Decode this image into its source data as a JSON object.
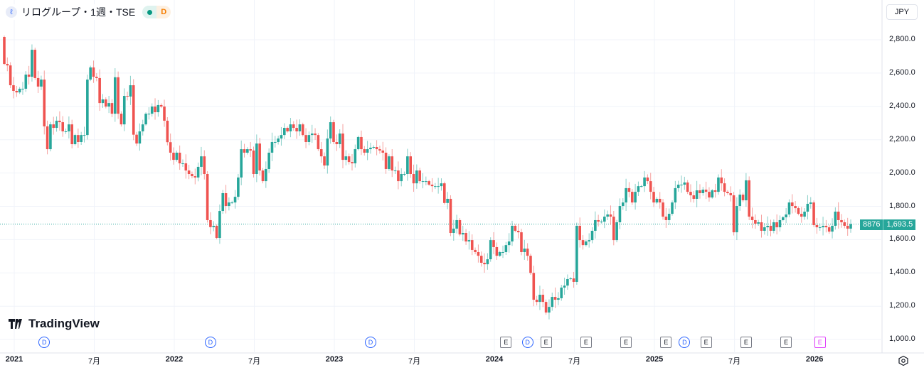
{
  "header": {
    "title": "リログループ・1週・TSE",
    "market_status_icon": "green-dot",
    "dividend_badge": "D",
    "symbol_icon": "relo-logo"
  },
  "currency_button": "JPY",
  "price_label": {
    "volume": "8876",
    "price": "1,693.5"
  },
  "logo_text": "TradingView",
  "colors": {
    "up": "#26a69a",
    "down": "#ef5350",
    "grid": "#f0f3fa",
    "price_line": "#26a69a"
  },
  "chart_data": {
    "type": "candlestick",
    "title": "リログループ・1週・TSE",
    "ylim": [
      1000,
      2800
    ],
    "y_ticks": [
      "2,800.0",
      "2,600.0",
      "2,400.0",
      "2,200.0",
      "2,000.0",
      "1,800.0",
      "1,600.0",
      "1,400.0",
      "1,200.0",
      "1,000.0"
    ],
    "y_tick_values": [
      2800,
      2600,
      2400,
      2200,
      2000,
      1800,
      1600,
      1400,
      1200,
      1000
    ],
    "x_ticks": [
      {
        "label": "2021",
        "year": true,
        "week": 0
      },
      {
        "label": "7月",
        "year": false,
        "week": 26
      },
      {
        "label": "2022",
        "year": true,
        "week": 52
      },
      {
        "label": "7月",
        "year": false,
        "week": 78
      },
      {
        "label": "2023",
        "year": true,
        "week": 104
      },
      {
        "label": "7月",
        "year": false,
        "week": 130
      },
      {
        "label": "2024",
        "year": true,
        "week": 156
      },
      {
        "label": "7月",
        "year": false,
        "week": 182
      },
      {
        "label": "2025",
        "year": true,
        "week": 208
      },
      {
        "label": "7月",
        "year": false,
        "week": 234
      },
      {
        "label": "2026",
        "year": true,
        "week": 260
      }
    ],
    "first_open": 2817,
    "closes": [
      2655,
      2646,
      2527,
      2493,
      2484,
      2506,
      2506,
      2591,
      2578,
      2740,
      2570,
      2519,
      2561,
      2280,
      2143,
      2292,
      2271,
      2314,
      2305,
      2250,
      2250,
      2292,
      2173,
      2228,
      2186,
      2228,
      2228,
      2561,
      2634,
      2578,
      2570,
      2420,
      2442,
      2399,
      2420,
      2356,
      2575,
      2356,
      2292,
      2463,
      2459,
      2527,
      2230,
      2177,
      2250,
      2292,
      2356,
      2356,
      2399,
      2365,
      2408,
      2399,
      2314,
      2185,
      2122,
      2079,
      2122,
      2058,
      2058,
      2015,
      1994,
      1981,
      1973,
      2037,
      2100,
      1994,
      1717,
      1675,
      1683,
      1610,
      1772,
      1879,
      1802,
      1823,
      1823,
      1857,
      1973,
      2143,
      2122,
      2143,
      2135,
      1994,
      2177,
      2015,
      1951,
      2024,
      2122,
      2186,
      2186,
      2207,
      2228,
      2271,
      2250,
      2292,
      2271,
      2250,
      2292,
      2228,
      2186,
      2228,
      2237,
      2228,
      2143,
      2100,
      2045,
      2207,
      2305,
      2186,
      2173,
      2237,
      2079,
      2100,
      2066,
      2058,
      2143,
      2216,
      2143,
      2122,
      2143,
      2152,
      2156,
      2143,
      2135,
      2122,
      2024,
      2100,
      2015,
      2015,
      1951,
      1994,
      1994,
      2100,
      1994,
      1938,
      2015,
      1951,
      1951,
      1951,
      1930,
      1921,
      1921,
      1921,
      1938,
      1820,
      1845,
      1640,
      1666,
      1717,
      1631,
      1640,
      1589,
      1597,
      1538,
      1525,
      1503,
      1461,
      1452,
      1482,
      1597,
      1555,
      1503,
      1525,
      1525,
      1567,
      1589,
      1683,
      1653,
      1644,
      1525,
      1546,
      1503,
      1400,
      1239,
      1226,
      1269,
      1226,
      1162,
      1196,
      1256,
      1239,
      1248,
      1312,
      1324,
      1363,
      1367,
      1346,
      1683,
      1597,
      1567,
      1589,
      1597,
      1653,
      1717,
      1708,
      1708,
      1738,
      1751,
      1738,
      1597,
      1704,
      1802,
      1823,
      1909,
      1887,
      1823,
      1887,
      1921,
      1921,
      1973,
      1951,
      1887,
      1823,
      1845,
      1823,
      1738,
      1717,
      1755,
      1823,
      1909,
      1930,
      1930,
      1943,
      1887,
      1866,
      1845,
      1896,
      1879,
      1900,
      1887,
      1853,
      1896,
      1887,
      1973,
      1938,
      1887,
      1879,
      1866,
      1644,
      1802,
      1870,
      1836,
      1956,
      1738,
      1717,
      1696,
      1704,
      1653,
      1674,
      1683,
      1653,
      1704,
      1674,
      1717,
      1734,
      1751,
      1823,
      1802,
      1789,
      1755,
      1738,
      1768,
      1815,
      1823,
      1687,
      1674,
      1674,
      1683,
      1674,
      1648,
      1683,
      1768,
      1717,
      1704,
      1683,
      1666,
      1693.5
    ],
    "last_price": 1693.5,
    "events": [
      {
        "type": "D",
        "label": "D",
        "week": 13
      },
      {
        "type": "D",
        "label": "D",
        "week": 67
      },
      {
        "type": "D",
        "label": "D",
        "week": 119
      },
      {
        "type": "E",
        "label": "E",
        "week": 163
      },
      {
        "type": "D",
        "label": "D",
        "week": 170
      },
      {
        "type": "E",
        "label": "E",
        "week": 176
      },
      {
        "type": "E",
        "label": "E",
        "week": 189
      },
      {
        "type": "E",
        "label": "E",
        "week": 202
      },
      {
        "type": "E",
        "label": "E",
        "week": 215
      },
      {
        "type": "D",
        "label": "D",
        "week": 221
      },
      {
        "type": "E",
        "label": "E",
        "week": 228
      },
      {
        "type": "E",
        "label": "E",
        "week": 241
      },
      {
        "type": "E",
        "label": "E",
        "week": 254
      },
      {
        "type": "F",
        "label": "E",
        "week": 265
      }
    ]
  }
}
